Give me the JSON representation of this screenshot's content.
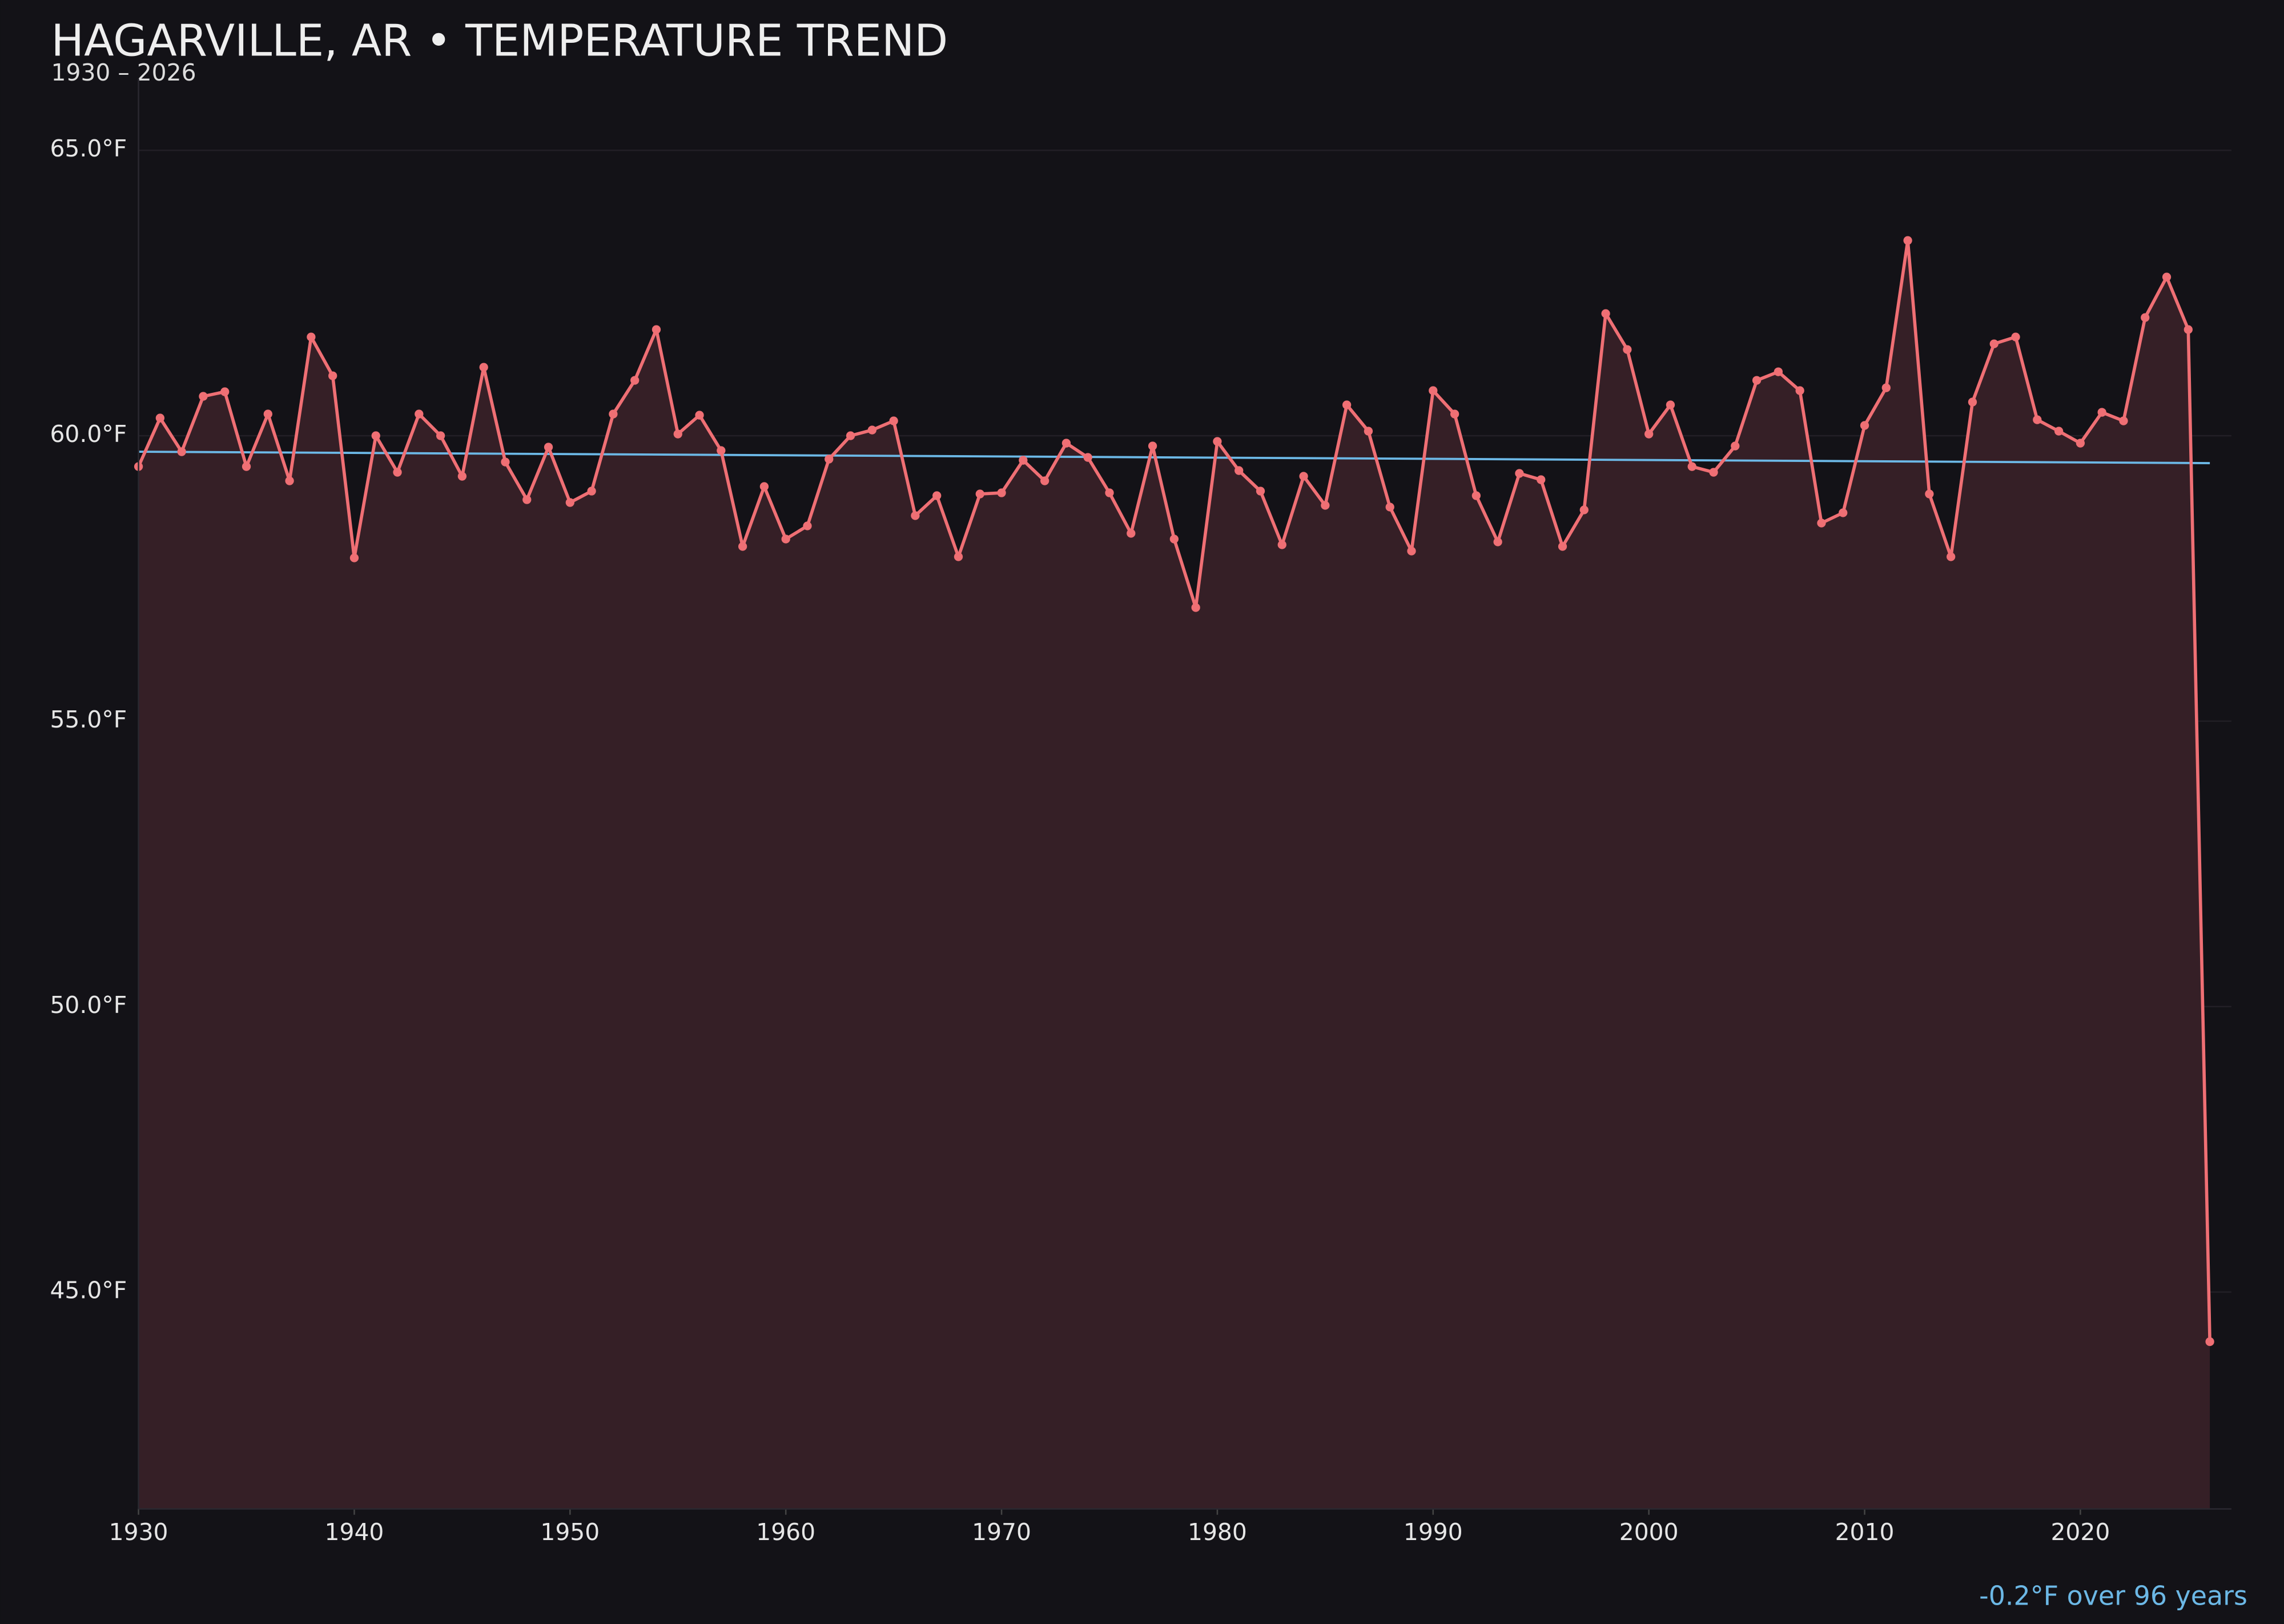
{
  "chart_data": {
    "type": "line",
    "title": "HAGARVILLE, AR • TEMPERATURE TREND",
    "subtitle": "1930 – 2026",
    "annotation": "-0.2°F over 96 years",
    "x": [
      1930,
      1931,
      1932,
      1933,
      1934,
      1935,
      1936,
      1937,
      1938,
      1939,
      1940,
      1941,
      1942,
      1943,
      1944,
      1945,
      1946,
      1947,
      1948,
      1949,
      1950,
      1951,
      1952,
      1953,
      1954,
      1955,
      1956,
      1957,
      1958,
      1959,
      1960,
      1961,
      1962,
      1963,
      1964,
      1965,
      1966,
      1967,
      1968,
      1969,
      1970,
      1971,
      1972,
      1973,
      1974,
      1975,
      1976,
      1977,
      1978,
      1979,
      1980,
      1981,
      1982,
      1983,
      1984,
      1985,
      1986,
      1987,
      1988,
      1989,
      1990,
      1991,
      1992,
      1993,
      1994,
      1995,
      1996,
      1997,
      1998,
      1999,
      2000,
      2001,
      2002,
      2003,
      2004,
      2005,
      2006,
      2007,
      2008,
      2009,
      2010,
      2011,
      2012,
      2013,
      2014,
      2015,
      2016,
      2017,
      2018,
      2019,
      2020,
      2021,
      2022,
      2023,
      2024,
      2025,
      2026
    ],
    "series": [
      {
        "name": "Temperature",
        "color": "#ef6f74",
        "values": [
          59.46,
          60.31,
          59.72,
          60.69,
          60.77,
          59.46,
          60.38,
          59.21,
          61.73,
          61.05,
          57.86,
          60.0,
          59.36,
          60.38,
          60.0,
          59.29,
          61.2,
          59.54,
          58.88,
          59.8,
          58.83,
          59.03,
          60.38,
          60.97,
          61.86,
          60.03,
          60.36,
          59.74,
          58.06,
          59.11,
          58.19,
          58.42,
          59.59,
          60.0,
          60.1,
          60.26,
          58.6,
          58.95,
          57.88,
          58.98,
          59.0,
          59.57,
          59.21,
          59.87,
          59.62,
          59.0,
          58.29,
          59.82,
          58.19,
          56.99,
          59.9,
          59.39,
          59.03,
          58.09,
          59.29,
          58.78,
          60.54,
          60.08,
          58.75,
          57.98,
          60.79,
          60.38,
          58.95,
          58.14,
          59.34,
          59.23,
          58.06,
          58.7,
          62.14,
          61.51,
          60.03,
          60.54,
          59.46,
          59.36,
          59.82,
          60.97,
          61.12,
          60.79,
          58.47,
          58.65,
          60.18,
          60.84,
          63.42,
          58.98,
          57.88,
          60.59,
          61.61,
          61.73,
          60.28,
          60.08,
          59.87,
          60.41,
          60.26,
          62.07,
          62.78,
          61.86,
          44.13
        ]
      }
    ],
    "trend": {
      "color": "#6cb8e6",
      "x": [
        1930,
        2026
      ],
      "values": [
        59.72,
        59.52
      ]
    },
    "area_fill": "#351f26",
    "xlim": [
      1930,
      2027
    ],
    "ylim": [
      41.2,
      66.0
    ],
    "xticks": [
      1930,
      1940,
      1950,
      1960,
      1970,
      1980,
      1990,
      2000,
      2010,
      2020
    ],
    "yticks": [
      {
        "value": 45,
        "label": "45.0°F"
      },
      {
        "value": 50,
        "label": "50.0°F"
      },
      {
        "value": 55,
        "label": "55.0°F"
      },
      {
        "value": 60,
        "label": "60.0°F"
      },
      {
        "value": 65,
        "label": "65.0°F"
      }
    ],
    "grid": true
  }
}
